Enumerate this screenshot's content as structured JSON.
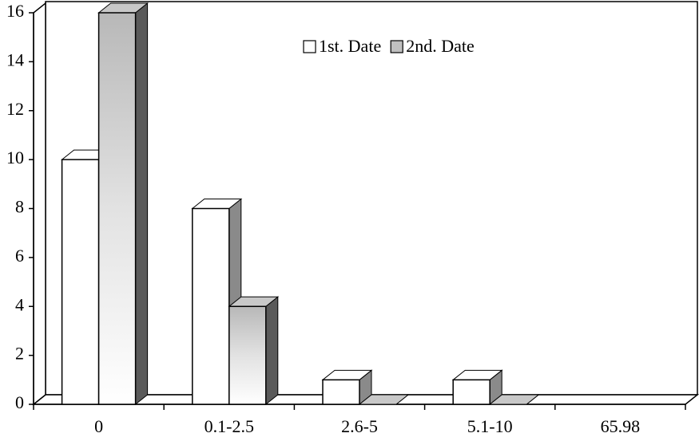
{
  "chart_data": {
    "type": "bar3d",
    "categories": [
      "0",
      "0.1-2.5",
      "2.6-5",
      "5.1-10",
      "65.98"
    ],
    "series": [
      {
        "name": "1st. Date",
        "color": "#ffffff",
        "values": [
          10,
          8,
          1,
          1,
          null
        ]
      },
      {
        "name": "2nd. Date",
        "color": "#c0c0c0",
        "values": [
          16,
          4,
          0,
          0,
          null
        ]
      }
    ],
    "ylim": [
      0,
      16
    ],
    "yticks": [
      0,
      2,
      4,
      6,
      8,
      10,
      12,
      14,
      16
    ],
    "grid": false
  }
}
